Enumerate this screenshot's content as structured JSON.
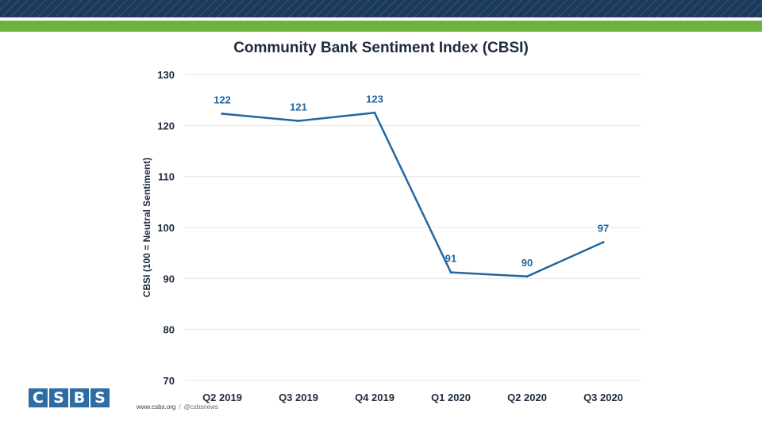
{
  "chart_data": {
    "type": "line",
    "title": "Community Bank Sentiment Index (CBSI)",
    "xlabel": "",
    "ylabel": "CBSI (100 = Neutral Sentiment)",
    "categories": [
      "Q2 2019",
      "Q3 2019",
      "Q4 2019",
      "Q1 2020",
      "Q2 2020",
      "Q3 2020"
    ],
    "series": [
      {
        "name": "CBSI",
        "values": [
          122,
          121,
          123,
          91,
          90,
          97
        ],
        "display_values": [
          122.3,
          120.9,
          122.5,
          91.2,
          90.4,
          97.1
        ]
      }
    ],
    "ylim": [
      70,
      130
    ],
    "yticks": [
      70,
      80,
      90,
      100,
      110,
      120,
      130
    ],
    "grid": true,
    "line_color": "#2166a0",
    "label_color": "#2166a0"
  },
  "brand": {
    "logo_letters": [
      "C",
      "S",
      "B",
      "S"
    ],
    "website": "www.csbs.org",
    "separator": "/",
    "social_handle": "@csbsnews",
    "header_color": "#1d3a5a",
    "accent_green": "#6db33f",
    "logo_color": "#2e6da4"
  }
}
